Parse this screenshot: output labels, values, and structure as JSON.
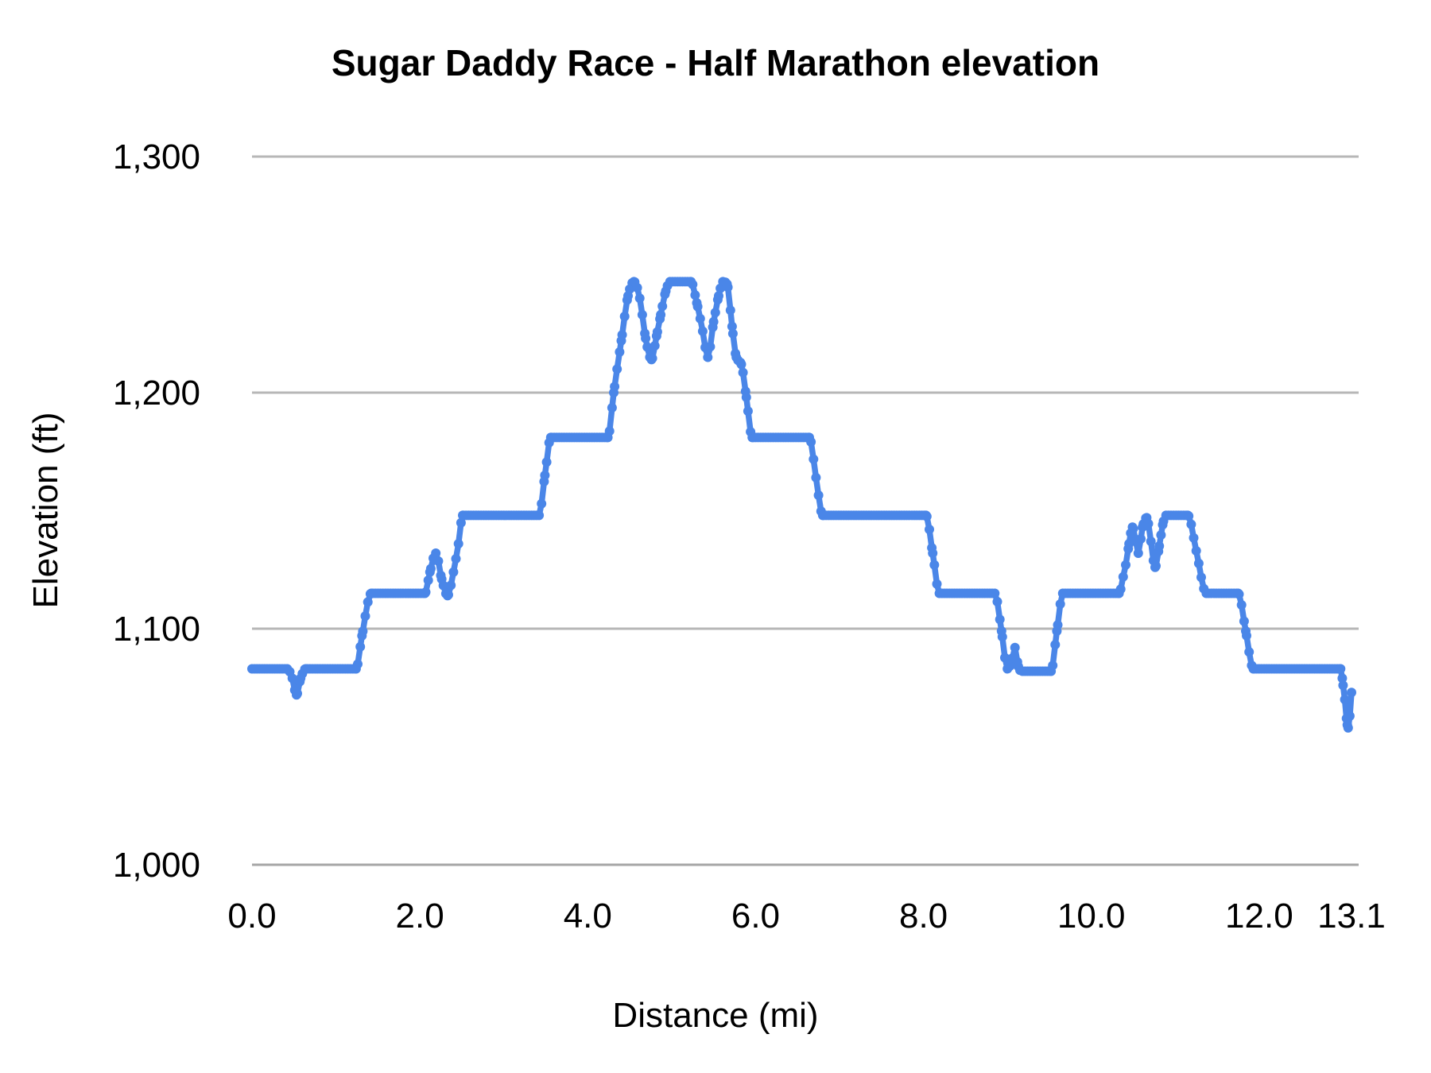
{
  "chart_data": {
    "type": "line",
    "title": "Sugar Daddy Race - Half Marathon elevation",
    "xlabel": "Distance (mi)",
    "ylabel": "Elevation (ft)",
    "xlim": [
      0,
      13.1
    ],
    "ylim": [
      1000,
      1300
    ],
    "grid": "horizontal",
    "grid_color": "#b7b7b7",
    "baseline_color": "#a6a6a6",
    "background_color": "#ffffff",
    "text_color": "#000000",
    "legend": "none",
    "x_ticks": [
      {
        "value": 0.0,
        "label": "0.0"
      },
      {
        "value": 2.0,
        "label": "2.0"
      },
      {
        "value": 4.0,
        "label": "4.0"
      },
      {
        "value": 6.0,
        "label": "6.0"
      },
      {
        "value": 8.0,
        "label": "8.0"
      },
      {
        "value": 10.0,
        "label": "10.0"
      },
      {
        "value": 12.0,
        "label": "12.0"
      },
      {
        "value": 13.1,
        "label": "13.1"
      }
    ],
    "y_ticks": [
      {
        "value": 1000,
        "label": "1,000"
      },
      {
        "value": 1100,
        "label": "1,100"
      },
      {
        "value": 1200,
        "label": "1,200"
      },
      {
        "value": 1300,
        "label": "1,300"
      }
    ],
    "series": [
      {
        "name": "Elevation (ft)",
        "color": "#4a86e8",
        "marker": "circle",
        "points": [
          [
            0.0,
            1083
          ],
          [
            0.42,
            1083
          ],
          [
            0.48,
            1079
          ],
          [
            0.53,
            1072
          ],
          [
            0.58,
            1079
          ],
          [
            0.64,
            1083
          ],
          [
            1.24,
            1083
          ],
          [
            1.31,
            1097
          ],
          [
            1.42,
            1115
          ],
          [
            2.06,
            1115
          ],
          [
            2.12,
            1124
          ],
          [
            2.19,
            1132
          ],
          [
            2.26,
            1121
          ],
          [
            2.33,
            1114
          ],
          [
            2.4,
            1124
          ],
          [
            2.46,
            1136
          ],
          [
            2.51,
            1148
          ],
          [
            3.42,
            1148
          ],
          [
            3.49,
            1165
          ],
          [
            3.56,
            1181
          ],
          [
            4.24,
            1181
          ],
          [
            4.31,
            1200
          ],
          [
            4.4,
            1222
          ],
          [
            4.48,
            1241
          ],
          [
            4.55,
            1247
          ],
          [
            4.62,
            1240
          ],
          [
            4.69,
            1223
          ],
          [
            4.76,
            1214
          ],
          [
            4.82,
            1224
          ],
          [
            4.87,
            1233
          ],
          [
            4.93,
            1243
          ],
          [
            4.98,
            1247
          ],
          [
            5.23,
            1247
          ],
          [
            5.3,
            1238
          ],
          [
            5.37,
            1226
          ],
          [
            5.43,
            1215
          ],
          [
            5.5,
            1230
          ],
          [
            5.56,
            1241
          ],
          [
            5.61,
            1247
          ],
          [
            5.66,
            1246
          ],
          [
            5.72,
            1228
          ],
          [
            5.77,
            1215
          ],
          [
            5.83,
            1212
          ],
          [
            5.89,
            1198
          ],
          [
            5.96,
            1181
          ],
          [
            6.64,
            1181
          ],
          [
            6.72,
            1164
          ],
          [
            6.8,
            1148
          ],
          [
            8.03,
            1148
          ],
          [
            8.11,
            1132
          ],
          [
            8.19,
            1115
          ],
          [
            8.85,
            1115
          ],
          [
            8.93,
            1099
          ],
          [
            9.0,
            1083
          ],
          [
            9.05,
            1086
          ],
          [
            9.09,
            1092
          ],
          [
            9.13,
            1084
          ],
          [
            9.18,
            1082
          ],
          [
            9.52,
            1082
          ],
          [
            9.59,
            1099
          ],
          [
            9.66,
            1115
          ],
          [
            10.33,
            1115
          ],
          [
            10.38,
            1122
          ],
          [
            10.41,
            1127
          ],
          [
            10.45,
            1136
          ],
          [
            10.49,
            1143
          ],
          [
            10.53,
            1137
          ],
          [
            10.56,
            1132
          ],
          [
            10.61,
            1143
          ],
          [
            10.66,
            1147
          ],
          [
            10.71,
            1137
          ],
          [
            10.76,
            1126
          ],
          [
            10.81,
            1135
          ],
          [
            10.85,
            1144
          ],
          [
            10.89,
            1148
          ],
          [
            11.15,
            1148
          ],
          [
            11.25,
            1133
          ],
          [
            11.37,
            1115
          ],
          [
            11.75,
            1115
          ],
          [
            11.84,
            1099
          ],
          [
            11.93,
            1083
          ],
          [
            12.97,
            1083
          ],
          [
            13.0,
            1076
          ],
          [
            13.02,
            1070
          ],
          [
            13.04,
            1062
          ],
          [
            13.06,
            1058
          ],
          [
            13.08,
            1063
          ],
          [
            13.1,
            1073
          ]
        ]
      }
    ]
  }
}
